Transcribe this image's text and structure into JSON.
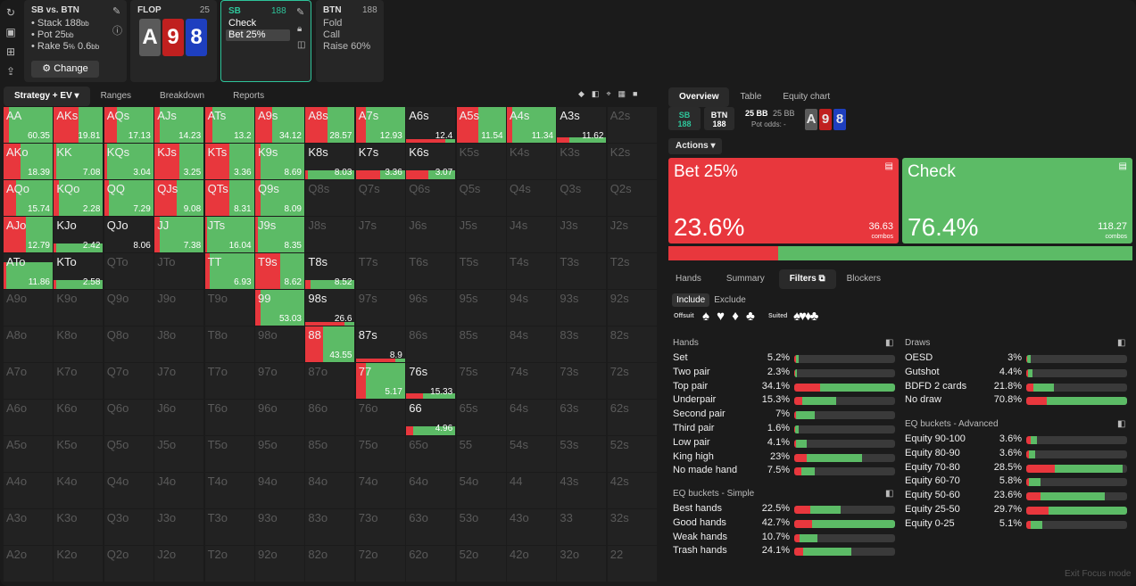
{
  "colors": {
    "bet": "#e8373d",
    "check": "#5cbb66",
    "accent": "#2ec49a",
    "spade_card": "#5a5a5a",
    "heart_card": "#c0201f",
    "diamond_card": "#1e3fbf"
  },
  "left_sidebar_icons": [
    "reload-icon",
    "save-icon",
    "gamepad-icon",
    "export-icon"
  ],
  "matchup": {
    "title": "SB vs. BTN",
    "stack": "• Stack 188",
    "stack_unit": "bb",
    "pot": "• Pot 25",
    "pot_unit": "bb",
    "rake": "• Rake 5",
    "rake_pct": "%",
    "rake_cap": " 0.6",
    "rake_unit": "bb",
    "change_label": "Change"
  },
  "flop": {
    "title": "FLOP",
    "count": "25",
    "cards": [
      "A",
      "9",
      "8"
    ]
  },
  "sb_card": {
    "title": "SB",
    "count": "188",
    "actions": [
      "Check",
      "Bet 25%"
    ]
  },
  "btn_card": {
    "title": "BTN",
    "count": "188",
    "actions": [
      "Fold",
      "Call",
      "Raise 60%"
    ]
  },
  "left_tabs": [
    "Strategy + EV",
    "Ranges",
    "Breakdown",
    "Reports"
  ],
  "grid": [
    [
      [
        "AA",
        "60.35",
        0.1,
        0.9
      ],
      [
        "AKs",
        "19.81",
        0.5,
        0.5
      ],
      [
        "AQs",
        "17.13",
        0.25,
        0.75
      ],
      [
        "AJs",
        "14.23",
        0.1,
        0.9
      ],
      [
        "ATs",
        "13.2",
        0.15,
        0.85
      ],
      [
        "A9s",
        "34.12",
        0.35,
        0.65
      ],
      [
        "A8s",
        "28.57",
        0.45,
        0.55
      ],
      [
        "A7s",
        "12.93",
        0.2,
        0.8
      ],
      [
        "A6s",
        "12.4",
        0.8,
        0.2,
        0.1
      ],
      [
        "A5s",
        "11.54",
        0.45,
        0.55
      ],
      [
        "A4s",
        "11.34",
        0.1,
        0.9
      ],
      [
        "A3s",
        "11.62",
        0.25,
        0.75,
        0.15
      ],
      [
        "A2s",
        "",
        null
      ]
    ],
    [
      [
        "AKo",
        "18.39",
        0.35,
        0.65
      ],
      [
        "KK",
        "7.08",
        0.05,
        0.95
      ],
      [
        "KQs",
        "3.04",
        0.05,
        0.95
      ],
      [
        "KJs",
        "3.25",
        0.5,
        0.5
      ],
      [
        "KTs",
        "3.36",
        0.5,
        0.5
      ],
      [
        "K9s",
        "8.69",
        0.1,
        0.9
      ],
      [
        "K8s",
        "8.03",
        0.05,
        0.95,
        0.25
      ],
      [
        "K7s",
        "3.36",
        0.5,
        0.5,
        0.25
      ],
      [
        "K6s",
        "3.07",
        0.45,
        0.55,
        0.25
      ],
      [
        "K5s",
        "",
        null
      ],
      [
        "K4s",
        "",
        null
      ],
      [
        "K3s",
        "",
        null
      ],
      [
        "K2s",
        "",
        null
      ]
    ],
    [
      [
        "AQo",
        "15.74",
        0.25,
        0.75
      ],
      [
        "KQo",
        "2.28",
        0.1,
        0.9
      ],
      [
        "QQ",
        "7.29",
        0.1,
        0.9
      ],
      [
        "QJs",
        "9.08",
        0.45,
        0.55
      ],
      [
        "QTs",
        "8.31",
        0.5,
        0.5
      ],
      [
        "Q9s",
        "8.09",
        0.1,
        0.9
      ],
      [
        "Q8s",
        "",
        null
      ],
      [
        "Q7s",
        "",
        null
      ],
      [
        "Q6s",
        "",
        null
      ],
      [
        "Q5s",
        "",
        null
      ],
      [
        "Q4s",
        "",
        null
      ],
      [
        "Q3s",
        "",
        null
      ],
      [
        "Q2s",
        "",
        null
      ]
    ],
    [
      [
        "AJo",
        "12.79",
        0.45,
        0.55
      ],
      [
        "KJo",
        "2.42",
        0.05,
        0.95,
        0.25
      ],
      [
        "QJo",
        "8.06",
        0,
        0,
        0
      ],
      [
        "JJ",
        "7.38",
        0.1,
        0.9
      ],
      [
        "JTs",
        "16.04",
        0.05,
        0.95
      ],
      [
        "J9s",
        "8.35",
        0.05,
        0.95
      ],
      [
        "J8s",
        "",
        null
      ],
      [
        "J7s",
        "",
        null
      ],
      [
        "J6s",
        "",
        null
      ],
      [
        "J5s",
        "",
        null
      ],
      [
        "J4s",
        "",
        null
      ],
      [
        "J3s",
        "",
        null
      ],
      [
        "J2s",
        "",
        null
      ]
    ],
    [
      [
        "ATo",
        "11.86",
        0.05,
        0.95,
        0.75
      ],
      [
        "KTo",
        "2.58",
        0.05,
        0.95,
        0.25
      ],
      [
        "QTo",
        "",
        null
      ],
      [
        "JTo",
        "",
        null
      ],
      [
        "TT",
        "6.93",
        0.1,
        0.9
      ],
      [
        "T9s",
        "8.62",
        0.5,
        0.5
      ],
      [
        "T8s",
        "8.52",
        0.1,
        0.9,
        0.25
      ],
      [
        "T7s",
        "",
        null
      ],
      [
        "T6s",
        "",
        null
      ],
      [
        "T5s",
        "",
        null
      ],
      [
        "T4s",
        "",
        null
      ],
      [
        "T3s",
        "",
        null
      ],
      [
        "T2s",
        "",
        null
      ]
    ],
    [
      [
        "A9o",
        "",
        null
      ],
      [
        "K9o",
        "",
        null
      ],
      [
        "Q9o",
        "",
        null
      ],
      [
        "J9o",
        "",
        null
      ],
      [
        "T9o",
        "",
        null
      ],
      [
        "99",
        "53.03",
        0.1,
        0.9
      ],
      [
        "98s",
        "26.6",
        0.8,
        0.2,
        0.1
      ],
      [
        "97s",
        "",
        null
      ],
      [
        "96s",
        "",
        null
      ],
      [
        "95s",
        "",
        null
      ],
      [
        "94s",
        "",
        null
      ],
      [
        "93s",
        "",
        null
      ],
      [
        "92s",
        "",
        null
      ]
    ],
    [
      [
        "A8o",
        "",
        null
      ],
      [
        "K8o",
        "",
        null
      ],
      [
        "Q8o",
        "",
        null
      ],
      [
        "J8o",
        "",
        null
      ],
      [
        "T8o",
        "",
        null
      ],
      [
        "98o",
        "",
        null
      ],
      [
        "88",
        "43.55",
        0.35,
        0.65
      ],
      [
        "87s",
        "8.9",
        0.8,
        0.2,
        0.1
      ],
      [
        "86s",
        "",
        null
      ],
      [
        "85s",
        "",
        null
      ],
      [
        "84s",
        "",
        null
      ],
      [
        "83s",
        "",
        null
      ],
      [
        "82s",
        "",
        null
      ]
    ],
    [
      [
        "A7o",
        "",
        null
      ],
      [
        "K7o",
        "",
        null
      ],
      [
        "Q7o",
        "",
        null
      ],
      [
        "J7o",
        "",
        null
      ],
      [
        "T7o",
        "",
        null
      ],
      [
        "97o",
        "",
        null
      ],
      [
        "87o",
        "",
        null
      ],
      [
        "77",
        "5.17",
        0.2,
        0.8
      ],
      [
        "76s",
        "15.33",
        0.35,
        0.65,
        0.15
      ],
      [
        "75s",
        "",
        null
      ],
      [
        "74s",
        "",
        null
      ],
      [
        "73s",
        "",
        null
      ],
      [
        "72s",
        "",
        null
      ]
    ],
    [
      [
        "A6o",
        "",
        null
      ],
      [
        "K6o",
        "",
        null
      ],
      [
        "Q6o",
        "",
        null
      ],
      [
        "J6o",
        "",
        null
      ],
      [
        "T6o",
        "",
        null
      ],
      [
        "96o",
        "",
        null
      ],
      [
        "86o",
        "",
        null
      ],
      [
        "76o",
        "",
        null
      ],
      [
        "66",
        "4.96",
        0.15,
        0.85,
        0.25
      ],
      [
        "65s",
        "",
        null
      ],
      [
        "64s",
        "",
        null
      ],
      [
        "63s",
        "",
        null
      ],
      [
        "62s",
        "",
        null
      ]
    ],
    [
      [
        "A5o",
        "",
        null
      ],
      [
        "K5o",
        "",
        null
      ],
      [
        "Q5o",
        "",
        null
      ],
      [
        "J5o",
        "",
        null
      ],
      [
        "T5o",
        "",
        null
      ],
      [
        "95o",
        "",
        null
      ],
      [
        "85o",
        "",
        null
      ],
      [
        "75o",
        "",
        null
      ],
      [
        "65o",
        "",
        null
      ],
      [
        "55",
        "",
        null
      ],
      [
        "54s",
        "",
        null
      ],
      [
        "53s",
        "",
        null
      ],
      [
        "52s",
        "",
        null
      ]
    ],
    [
      [
        "A4o",
        "",
        null
      ],
      [
        "K4o",
        "",
        null
      ],
      [
        "Q4o",
        "",
        null
      ],
      [
        "J4o",
        "",
        null
      ],
      [
        "T4o",
        "",
        null
      ],
      [
        "94o",
        "",
        null
      ],
      [
        "84o",
        "",
        null
      ],
      [
        "74o",
        "",
        null
      ],
      [
        "64o",
        "",
        null
      ],
      [
        "54o",
        "",
        null
      ],
      [
        "44",
        "",
        null
      ],
      [
        "43s",
        "",
        null
      ],
      [
        "42s",
        "",
        null
      ]
    ],
    [
      [
        "A3o",
        "",
        null
      ],
      [
        "K3o",
        "",
        null
      ],
      [
        "Q3o",
        "",
        null
      ],
      [
        "J3o",
        "",
        null
      ],
      [
        "T3o",
        "",
        null
      ],
      [
        "93o",
        "",
        null
      ],
      [
        "83o",
        "",
        null
      ],
      [
        "73o",
        "",
        null
      ],
      [
        "63o",
        "",
        null
      ],
      [
        "53o",
        "",
        null
      ],
      [
        "43o",
        "",
        null
      ],
      [
        "33",
        "",
        null
      ],
      [
        "32s",
        "",
        null
      ]
    ],
    [
      [
        "A2o",
        "",
        null
      ],
      [
        "K2o",
        "",
        null
      ],
      [
        "Q2o",
        "",
        null
      ],
      [
        "J2o",
        "",
        null
      ],
      [
        "T2o",
        "",
        null
      ],
      [
        "92o",
        "",
        null
      ],
      [
        "82o",
        "",
        null
      ],
      [
        "72o",
        "",
        null
      ],
      [
        "62o",
        "",
        null
      ],
      [
        "52o",
        "",
        null
      ],
      [
        "42o",
        "",
        null
      ],
      [
        "32o",
        "",
        null
      ],
      [
        "22",
        "",
        null
      ]
    ]
  ],
  "right_tabs": [
    "Overview",
    "Table",
    "Equity chart"
  ],
  "position_chips": [
    {
      "pos": "SB",
      "stack": "188"
    },
    {
      "pos": "BTN",
      "stack": "188"
    }
  ],
  "pot_info": {
    "pot": "25 BB",
    "to_call": "25 BB",
    "pot_odds": "Pot odds: -"
  },
  "actions_dropdown": "Actions",
  "action_boxes": [
    {
      "label": "Bet 25%",
      "pct": "23.6%",
      "combos": "36.63",
      "unit": "combos",
      "freq": 0.236
    },
    {
      "label": "Check",
      "pct": "76.4%",
      "combos": "118.27",
      "unit": "combos",
      "freq": 0.764
    }
  ],
  "bottom_tabs": [
    "Hands",
    "Summary",
    "Filters",
    "Blockers"
  ],
  "include_exclude": [
    "Include",
    "Exclude"
  ],
  "suit_labels": {
    "offsuit": "Offsuit",
    "suited": "Suited",
    "offsuit_glyphs": "♠ ♥ ♦ ♣",
    "suited_glyphs": "♠♥♦♣"
  },
  "hands_section": {
    "title": "Hands",
    "rows": [
      {
        "name": "Set",
        "pct": "5.2%",
        "bet": 0.02,
        "check": 0.02
      },
      {
        "name": "Two pair",
        "pct": "2.3%",
        "bet": 0.01,
        "check": 0.02
      },
      {
        "name": "Top pair",
        "pct": "34.1%",
        "bet": 0.26,
        "check": 0.74
      },
      {
        "name": "Underpair",
        "pct": "15.3%",
        "bet": 0.08,
        "check": 0.34
      },
      {
        "name": "Second pair",
        "pct": "7%",
        "bet": 0.02,
        "check": 0.18
      },
      {
        "name": "Third pair",
        "pct": "1.6%",
        "bet": 0.01,
        "check": 0.03
      },
      {
        "name": "Low pair",
        "pct": "4.1%",
        "bet": 0.02,
        "check": 0.1
      },
      {
        "name": "King high",
        "pct": "23%",
        "bet": 0.12,
        "check": 0.55
      },
      {
        "name": "No made hand",
        "pct": "7.5%",
        "bet": 0.07,
        "check": 0.13
      }
    ]
  },
  "eq_simple": {
    "title": "EQ buckets - Simple",
    "rows": [
      {
        "name": "Best hands",
        "pct": "22.5%",
        "bet": 0.16,
        "check": 0.3
      },
      {
        "name": "Good hands",
        "pct": "42.7%",
        "bet": 0.18,
        "check": 0.82
      },
      {
        "name": "Weak hands",
        "pct": "10.7%",
        "bet": 0.05,
        "check": 0.18
      },
      {
        "name": "Trash hands",
        "pct": "24.1%",
        "bet": 0.09,
        "check": 0.48
      }
    ]
  },
  "draws_section": {
    "title": "Draws",
    "rows": [
      {
        "name": "OESD",
        "pct": "3%",
        "bet": 0.01,
        "check": 0.03
      },
      {
        "name": "Gutshot",
        "pct": "4.4%",
        "bet": 0.02,
        "check": 0.04
      },
      {
        "name": "BDFD 2 cards",
        "pct": "21.8%",
        "bet": 0.07,
        "check": 0.2
      },
      {
        "name": "No draw",
        "pct": "70.8%",
        "bet": 0.2,
        "check": 0.8
      }
    ]
  },
  "eq_advanced": {
    "title": "EQ buckets - Advanced",
    "rows": [
      {
        "name": "Equity 90-100",
        "pct": "3.6%",
        "bet": 0.04,
        "check": 0.07
      },
      {
        "name": "Equity 80-90",
        "pct": "3.6%",
        "bet": 0.03,
        "check": 0.06
      },
      {
        "name": "Equity 70-80",
        "pct": "28.5%",
        "bet": 0.28,
        "check": 0.68
      },
      {
        "name": "Equity 60-70",
        "pct": "5.8%",
        "bet": 0.03,
        "check": 0.11
      },
      {
        "name": "Equity 50-60",
        "pct": "23.6%",
        "bet": 0.14,
        "check": 0.64
      },
      {
        "name": "Equity 25-50",
        "pct": "29.7%",
        "bet": 0.22,
        "check": 0.78
      },
      {
        "name": "Equity 0-25",
        "pct": "5.1%",
        "bet": 0.04,
        "check": 0.12
      }
    ]
  },
  "exit_focus": "Exit Focus mode"
}
